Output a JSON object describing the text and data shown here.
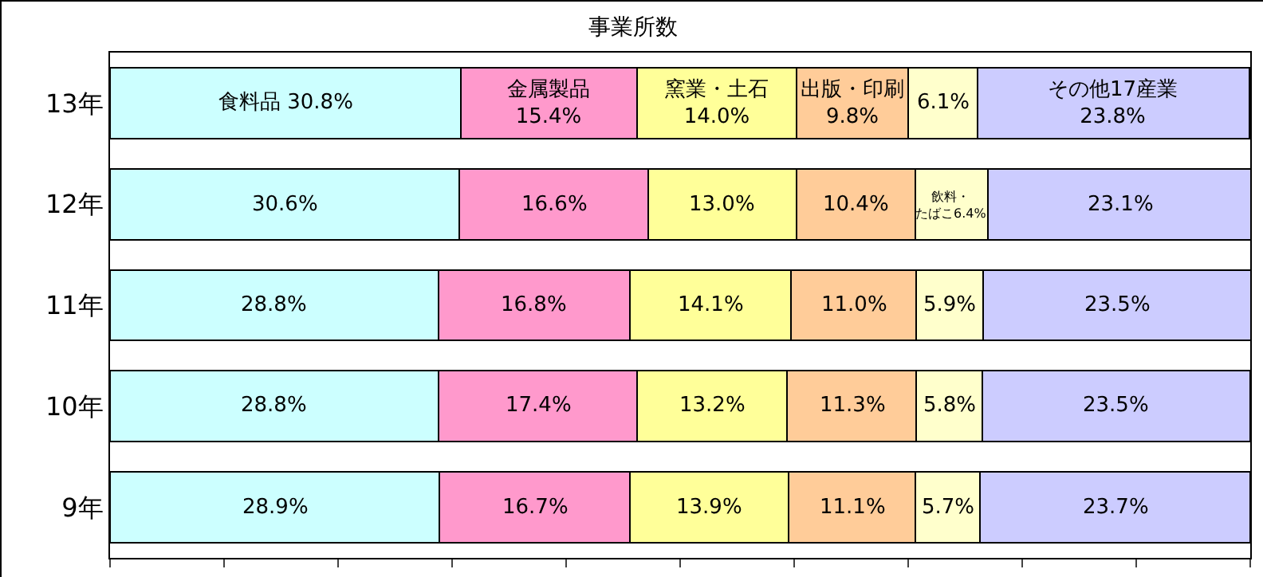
{
  "chart_data": {
    "type": "bar",
    "title": "事業所数",
    "orientation": "horizontal",
    "stacked": true,
    "categories": [
      "13年",
      "12年",
      "11年",
      "10年",
      "9年"
    ],
    "xlim": [
      0,
      100
    ],
    "xticks": [
      {
        "value": 0,
        "label": null
      },
      {
        "value": 10,
        "label": null
      },
      {
        "value": 20,
        "label": null
      },
      {
        "value": 30,
        "label": null
      },
      {
        "value": 40,
        "label": null
      },
      {
        "value": 50,
        "label": null
      },
      {
        "value": 60,
        "label": null
      },
      {
        "value": 70,
        "label": null
      },
      {
        "value": 80,
        "label": null
      },
      {
        "value": 90,
        "label": null
      },
      {
        "value": 100,
        "label": null
      }
    ],
    "tick_labels": "y",
    "grid": false,
    "series": [
      {
        "color": "#ccffff",
        "values": [
          30.8,
          30.6,
          28.8,
          28.8,
          28.9
        ],
        "value_labels": [
          "食料品 30.8%",
          "30.6%",
          "28.8%",
          "28.8%",
          "28.9%"
        ]
      },
      {
        "color": "#ff99cc",
        "values": [
          15.4,
          16.6,
          16.8,
          17.4,
          16.7
        ],
        "value_labels": [
          "金属製品\n15.4%",
          "16.6%",
          "16.8%",
          "17.4%",
          "16.7%"
        ]
      },
      {
        "color": "#ffff99",
        "values": [
          14.0,
          13.0,
          14.1,
          13.2,
          13.9
        ],
        "value_labels": [
          "窯業・土石\n14.0%",
          "13.0%",
          "14.1%",
          "13.2%",
          "13.9%"
        ]
      },
      {
        "color": "#ffcc99",
        "values": [
          9.8,
          10.4,
          11.0,
          11.3,
          11.1
        ],
        "value_labels": [
          "出版・印刷\n9.8%",
          "10.4%",
          "11.0%",
          "11.3%",
          "11.1%"
        ]
      },
      {
        "color": "#ffffcc",
        "values": [
          6.1,
          6.4,
          5.9,
          5.8,
          5.7
        ],
        "value_labels": [
          "6.1%",
          "飲料・たばこ6.4%",
          "5.9%",
          "5.8%",
          "5.7%"
        ]
      },
      {
        "color": "#ccccff",
        "values": [
          23.8,
          23.1,
          23.5,
          23.5,
          23.7
        ],
        "value_labels": [
          "その他17産業\n23.8%",
          "23.1%",
          "23.5%",
          "23.5%",
          "23.7%"
        ]
      }
    ]
  }
}
